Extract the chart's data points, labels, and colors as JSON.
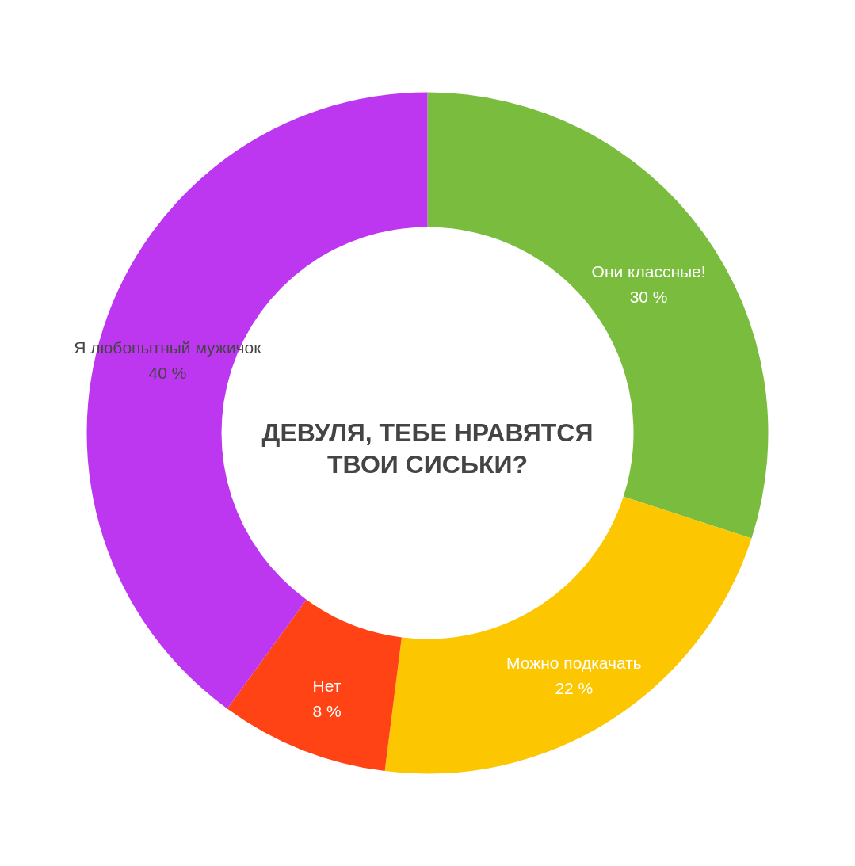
{
  "chart_data": {
    "type": "donut",
    "title": "ДЕВУЛЯ, ТЕБЕ НРАВЯТСЯ ТВОИ СИСЬКИ?",
    "categories": [
      "Они классные!",
      "Можно подкачать",
      "Нет",
      "Я любопытный мужичок"
    ],
    "values": [
      30,
      22,
      8,
      40
    ],
    "colors": [
      "#7abd3e",
      "#fcc600",
      "#ff4314",
      "#be37f0"
    ],
    "value_labels": [
      "30 %",
      "22 %",
      "8 %",
      "40 %"
    ],
    "legend": false
  }
}
